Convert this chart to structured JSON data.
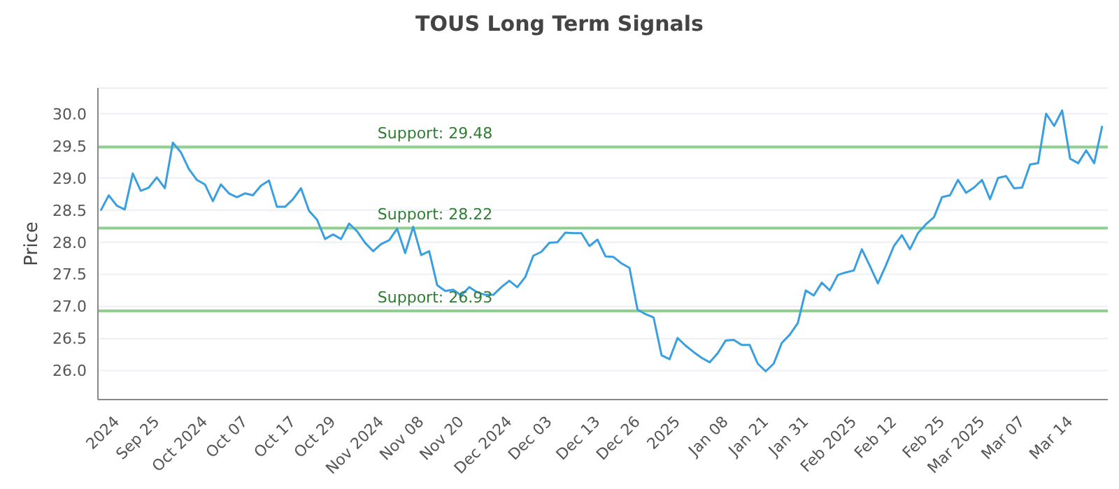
{
  "chart_data": {
    "type": "line",
    "title": "TOUS Long Term Signals",
    "ylabel": "Price",
    "categories": [
      null,
      null,
      "2024",
      null,
      null,
      null,
      null,
      "Sep 25",
      null,
      null,
      null,
      null,
      null,
      "Oct 2024",
      null,
      null,
      null,
      null,
      "Oct 07",
      null,
      null,
      null,
      null,
      null,
      "Oct 17",
      null,
      null,
      null,
      null,
      "Oct 29",
      null,
      null,
      null,
      null,
      null,
      "Nov 2024",
      null,
      null,
      null,
      null,
      "Nov 08",
      null,
      null,
      null,
      null,
      "Nov 20",
      null,
      null,
      null,
      null,
      null,
      "Dec 2024",
      null,
      null,
      null,
      null,
      "Dec 03",
      null,
      null,
      null,
      null,
      null,
      "Dec 13",
      null,
      null,
      null,
      null,
      "Dec 26",
      null,
      null,
      null,
      null,
      "2025",
      null,
      null,
      null,
      null,
      null,
      "Jan 08",
      null,
      null,
      null,
      null,
      "Jan 21",
      null,
      null,
      null,
      null,
      "Jan 31",
      null,
      null,
      null,
      null,
      null,
      "Feb 2025",
      null,
      null,
      null,
      null,
      "Feb 12",
      null,
      null,
      null,
      null,
      null,
      "Feb 25",
      null,
      null,
      null,
      null,
      "Mar 2025",
      null,
      null,
      null,
      null,
      "Mar 07",
      null,
      null,
      null,
      null,
      null,
      "Mar 14",
      null,
      null,
      null,
      null
    ],
    "series": [
      {
        "color": "#3a9fe0",
        "values": [
          28.49,
          28.73,
          28.57,
          28.51,
          29.07,
          28.8,
          28.85,
          29.01,
          28.84,
          29.55,
          29.4,
          29.14,
          28.97,
          28.9,
          28.64,
          28.9,
          28.76,
          28.7,
          28.76,
          28.73,
          28.88,
          28.96,
          28.55,
          28.55,
          28.67,
          28.84,
          28.49,
          28.35,
          28.05,
          28.12,
          28.05,
          28.29,
          28.17,
          27.99,
          27.86,
          27.97,
          28.03,
          28.21,
          27.83,
          28.24,
          27.8,
          27.86,
          27.33,
          27.24,
          27.26,
          27.17,
          27.3,
          27.22,
          27.18,
          27.18,
          27.3,
          27.4,
          27.3,
          27.46,
          27.79,
          27.85,
          27.99,
          28.0,
          28.15,
          28.14,
          28.14,
          27.94,
          28.04,
          27.78,
          27.77,
          27.67,
          27.6,
          26.95,
          26.88,
          26.83,
          26.24,
          26.18,
          26.51,
          26.39,
          26.29,
          26.2,
          26.13,
          26.27,
          26.47,
          26.48,
          26.4,
          26.4,
          26.11,
          25.99,
          26.11,
          26.43,
          26.56,
          26.74,
          27.25,
          27.17,
          27.37,
          27.25,
          27.49,
          27.53,
          27.56,
          27.89,
          27.63,
          27.36,
          27.64,
          27.94,
          28.11,
          27.89,
          28.14,
          28.28,
          28.39,
          28.7,
          28.73,
          28.97,
          28.77,
          28.85,
          28.97,
          28.67,
          29.0,
          29.03,
          28.84,
          28.85,
          29.21,
          29.23,
          30.0,
          29.81,
          30.05,
          29.3,
          29.23,
          29.43,
          29.23,
          29.81
        ]
      }
    ],
    "ylim": [
      25.55,
      30.4
    ],
    "yticks": [
      {
        "value": 26,
        "label": "26.0"
      },
      {
        "value": 26.5,
        "label": "26.5"
      },
      {
        "value": 27,
        "label": "27.0"
      },
      {
        "value": 27.5,
        "label": "27.5"
      },
      {
        "value": 28,
        "label": "28.0"
      },
      {
        "value": 28.5,
        "label": "28.5"
      },
      {
        "value": 29,
        "label": "29.0"
      },
      {
        "value": 29.5,
        "label": "29.5"
      },
      {
        "value": 30,
        "label": "30.0"
      }
    ],
    "grid": "y",
    "legend": false,
    "marker": "none",
    "line_style": "solid",
    "ref_lines": [
      {
        "axis": "y",
        "value": 29.48,
        "label": "Support: 29.48",
        "color": "#8fcf8f"
      },
      {
        "axis": "y",
        "value": 28.22,
        "label": "Support: 28.22",
        "color": "#8fcf8f"
      },
      {
        "axis": "y",
        "value": 26.93,
        "label": "Support: 26.93",
        "color": "#8fcf8f"
      }
    ]
  }
}
